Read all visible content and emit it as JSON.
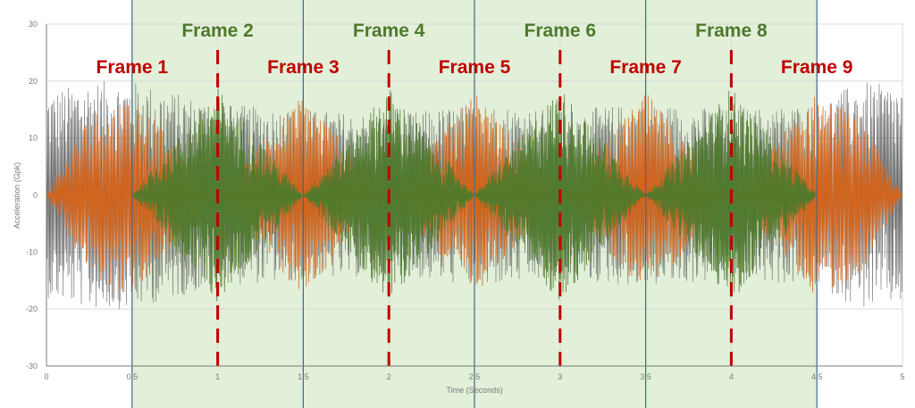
{
  "chart_data": {
    "type": "line",
    "title": "",
    "xlabel": "Time (Seconds)",
    "ylabel": "Acceleration (Gpk)",
    "xlim": [
      0,
      5
    ],
    "ylim": [
      -30,
      30
    ],
    "x_ticks": [
      "0",
      "0.5",
      "1",
      "1.5",
      "2",
      "2.5",
      "3",
      "3.5",
      "4",
      "4.5",
      "5"
    ],
    "y_ticks": [
      "30",
      "20",
      "10",
      "0",
      "-10",
      "-20",
      "-30"
    ],
    "grid": true,
    "series": [
      {
        "color": "#4d4d4d",
        "envelope_x": [
          0,
          0.25,
          0.5,
          1.0,
          1.5,
          2.0,
          2.5,
          3.0,
          3.5,
          4.0,
          4.5,
          4.75,
          5.0
        ],
        "envelope_gpk": [
          18,
          20,
          20,
          16,
          15,
          14,
          16,
          15,
          16,
          15,
          16,
          20,
          19
        ]
      },
      {
        "color": "#d4631a",
        "envelope_x": [
          0,
          0.25,
          0.5,
          1.0,
          1.5,
          2.0,
          2.5,
          3.0,
          3.5,
          4.0,
          4.5,
          4.75,
          5.0
        ],
        "envelope_gpk": [
          0,
          14,
          18,
          0,
          18,
          0,
          18,
          0,
          18,
          0,
          18,
          14,
          0
        ]
      },
      {
        "color": "#4e7a2c",
        "envelope_x": [
          0.5,
          1.0,
          1.5,
          2.0,
          2.5,
          3.0,
          3.5,
          4.0,
          4.5
        ],
        "envelope_gpk": [
          0,
          19,
          0,
          19,
          0,
          19,
          0,
          19,
          0
        ]
      }
    ],
    "frames": [
      {
        "label": "Frame 1",
        "color": "#c00000",
        "start": 0.0,
        "end": 1.0
      },
      {
        "label": "Frame 2",
        "color": "#4e7a2c",
        "start": 0.5,
        "end": 1.5
      },
      {
        "label": "Frame 3",
        "color": "#c00000",
        "start": 1.0,
        "end": 2.0
      },
      {
        "label": "Frame 4",
        "color": "#4e7a2c",
        "start": 1.5,
        "end": 2.5
      },
      {
        "label": "Frame 5",
        "color": "#c00000",
        "start": 2.0,
        "end": 3.0
      },
      {
        "label": "Frame 6",
        "color": "#4e7a2c",
        "start": 2.5,
        "end": 3.5
      },
      {
        "label": "Frame 7",
        "color": "#c00000",
        "start": 3.0,
        "end": 4.0
      },
      {
        "label": "Frame 8",
        "color": "#4e7a2c",
        "start": 3.5,
        "end": 4.5
      },
      {
        "label": "Frame 9",
        "color": "#c00000",
        "start": 4.0,
        "end": 5.0
      }
    ],
    "frame_dividers_x": [
      1,
      2,
      3,
      4
    ],
    "frame_boundaries_x": [
      0.5,
      1.5,
      2.5,
      3.5,
      4.5
    ],
    "shaded_region_x": [
      0.5,
      4.5
    ]
  },
  "colors": {
    "odd_frame": "#c00000",
    "even_frame": "#4e7a2c",
    "shaded_region": "#e2efd9",
    "boundary_line": "#3e6a8c",
    "grid": "#d9d9d9",
    "axis": "#7a7a7a"
  }
}
